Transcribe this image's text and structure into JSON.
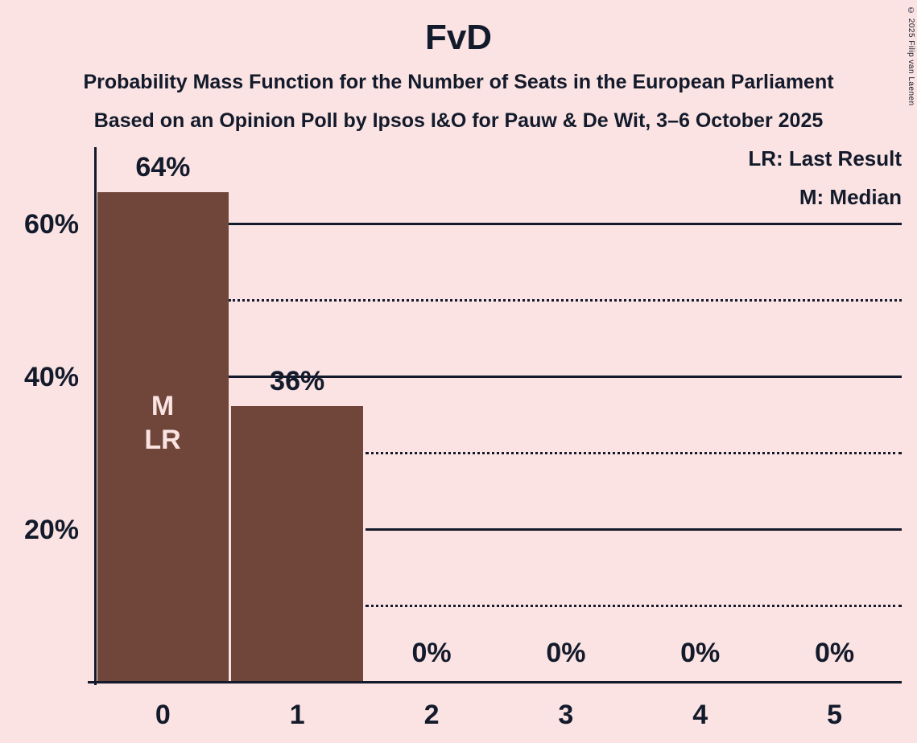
{
  "chart_data": {
    "type": "bar",
    "title": "FvD",
    "subtitle1": "Probability Mass Function for the Number of Seats in the European Parliament",
    "subtitle2": "Based on an Opinion Poll by Ipsos I&O for Pauw & De Wit, 3–6 October 2025",
    "xlabel": "",
    "ylabel": "",
    "categories": [
      "0",
      "1",
      "2",
      "3",
      "4",
      "5"
    ],
    "values": [
      64,
      36,
      0,
      0,
      0,
      0
    ],
    "value_labels": [
      "64%",
      "36%",
      "0%",
      "0%",
      "0%",
      "0%"
    ],
    "ylim": [
      0,
      70
    ],
    "yticks": [
      {
        "pct": 60,
        "label": "60%"
      },
      {
        "pct": 40,
        "label": "40%"
      },
      {
        "pct": 20,
        "label": "20%"
      }
    ],
    "solid_gridlines_pct": [
      20,
      40,
      60
    ],
    "dotted_gridlines_pct": [
      10,
      30,
      50
    ],
    "legend": {
      "lr": "LR: Last Result",
      "m": "M: Median"
    },
    "bar_annotations": {
      "bar_index": 0,
      "median": "M",
      "last_result": "LR"
    },
    "colors": {
      "background": "#fae3e2",
      "bar": "#6f4639",
      "text": "#131a2b"
    },
    "copyright": "© 2025 Filip van Laenen"
  }
}
